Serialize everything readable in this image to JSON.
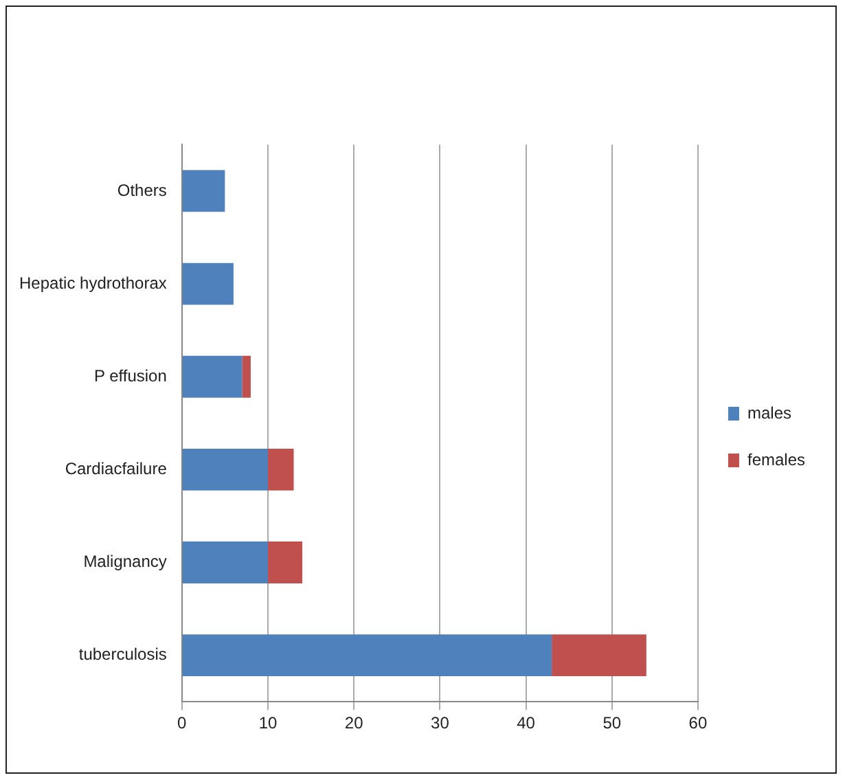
{
  "chart_data": {
    "type": "bar",
    "orientation": "horizontal",
    "stacked": true,
    "categories": [
      "Others",
      "Hepatic hydrothorax",
      "P effusion",
      "Cardiacfailure",
      "Malignancy",
      "tuberculosis"
    ],
    "series": [
      {
        "name": "males",
        "color": "#4f81bd",
        "values": [
          5,
          6,
          7,
          10,
          10,
          43
        ]
      },
      {
        "name": "females",
        "color": "#c0504d",
        "values": [
          0,
          0,
          1,
          3,
          4,
          11
        ]
      }
    ],
    "xlim": [
      0,
      60
    ],
    "xticks": [
      0,
      10,
      20,
      30,
      40,
      50,
      60
    ],
    "grid": "x",
    "legend": "right"
  }
}
